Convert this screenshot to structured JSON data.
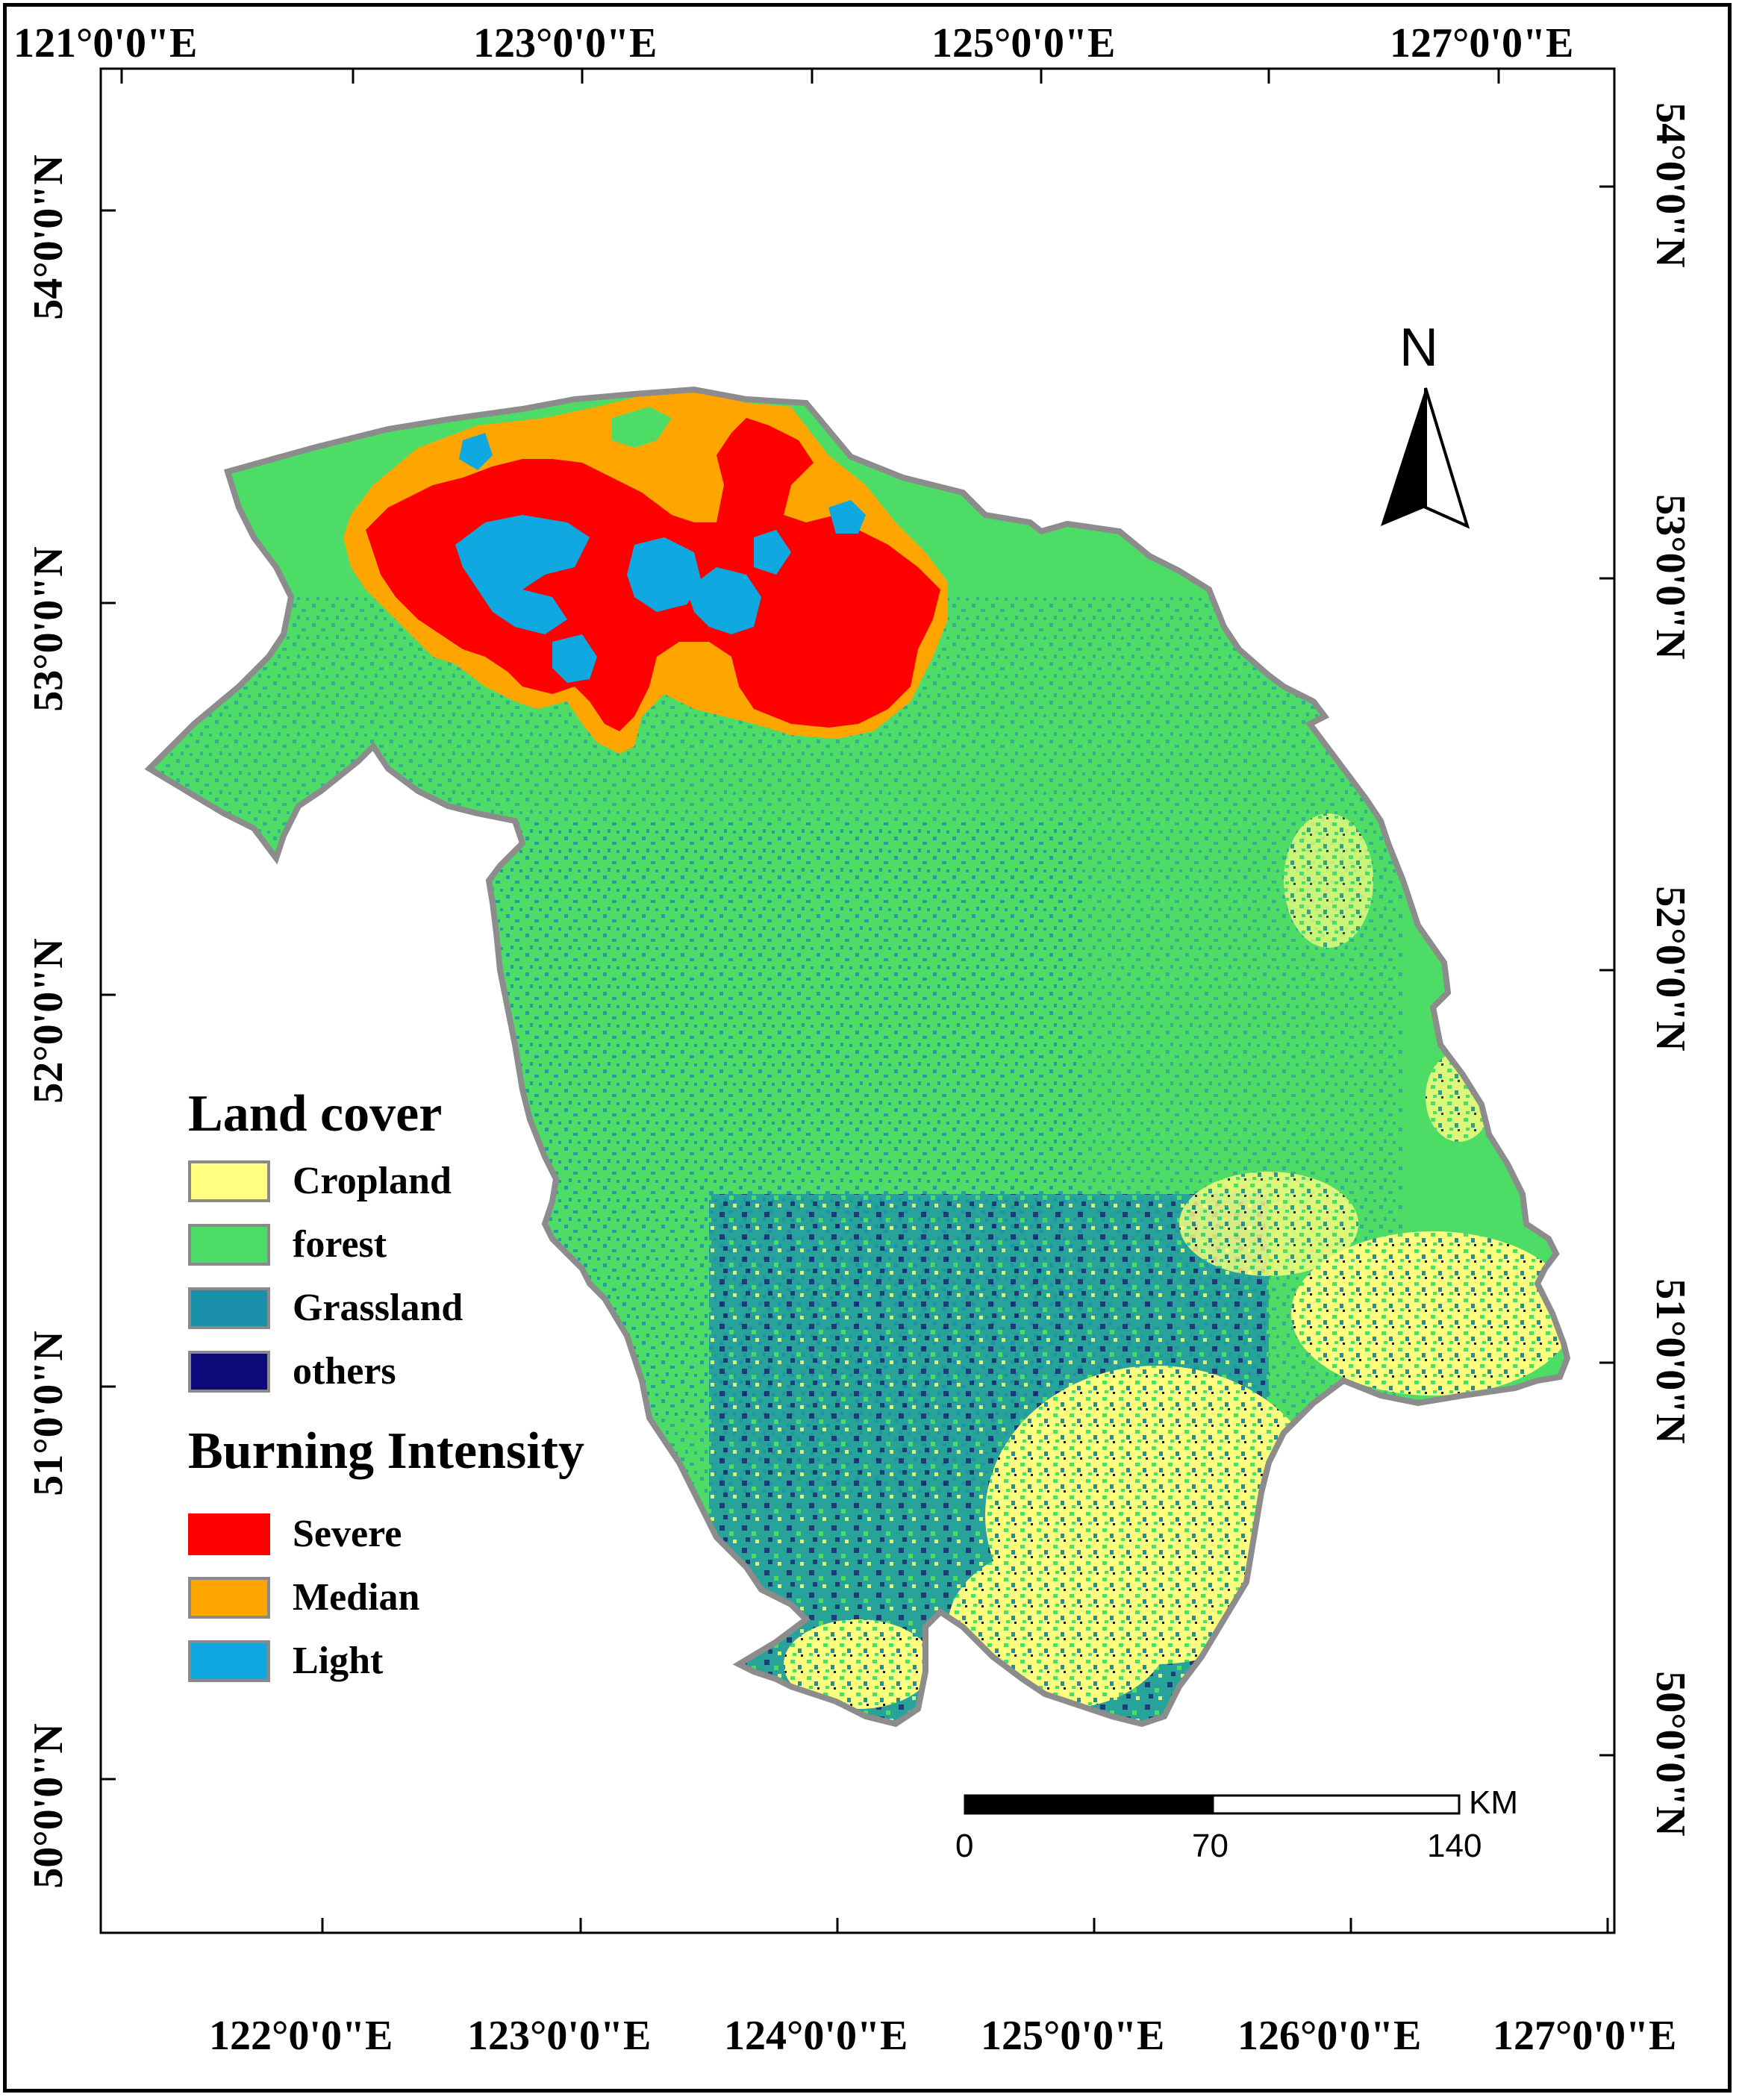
{
  "map": {
    "top_longitude_labels": [
      "121°0'0\"E",
      "123°0'0\"E",
      "125°0'0\"E",
      "127°0'0\"E"
    ],
    "bottom_longitude_labels": [
      "122°0'0\"E",
      "123°0'0\"E",
      "124°0'0\"E",
      "125°0'0\"E",
      "126°0'0\"E",
      "127°0'0\"E"
    ],
    "left_latitude_labels": [
      "54°0'0\"N",
      "53°0'0\"N",
      "52°0'0\"N",
      "51°0'0\"N",
      "50°0'0\"N"
    ],
    "right_latitude_labels": [
      "54°0'0\"N",
      "53°0'0\"N",
      "52°0'0\"N",
      "51°0'0\"N",
      "50°0'0\"N"
    ]
  },
  "legend": {
    "land_cover_title": "Land cover",
    "land_cover_items": [
      {
        "label": "Cropland",
        "color": "#ffff80"
      },
      {
        "label": "forest",
        "color": "#4ddd66"
      },
      {
        "label": "Grassland",
        "color": "#1a8faa"
      },
      {
        "label": "others",
        "color": "#0a0a7a"
      }
    ],
    "burning_title": "Burning Intensity",
    "burning_items": [
      {
        "label": "Severe",
        "color": "#ff0000"
      },
      {
        "label": "Median",
        "color": "#ffa500"
      },
      {
        "label": "Light",
        "color": "#10a8e0"
      }
    ]
  },
  "north_arrow": {
    "letter": "N"
  },
  "scale_bar": {
    "unit": "KM",
    "labels": [
      "0",
      "70",
      "140"
    ]
  },
  "colors": {
    "forest": "#4ddd66",
    "cropland": "#ffff80",
    "grassland": "#1a8faa",
    "others": "#0a0a7a",
    "severe": "#ff0000",
    "median": "#ffa500",
    "light": "#10a8e0",
    "boundary": "#8c8c8c"
  }
}
